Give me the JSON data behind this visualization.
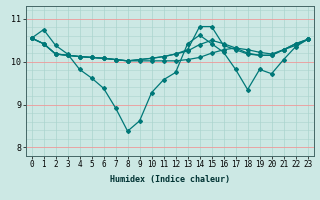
{
  "xlabel": "Humidex (Indice chaleur)",
  "bg_color": "#cce8e4",
  "line_color": "#007878",
  "grid_red": "#ee9999",
  "grid_teal": "#aad4ce",
  "xlim": [
    -0.5,
    23.5
  ],
  "ylim": [
    7.8,
    11.3
  ],
  "yticks": [
    8,
    9,
    10,
    11
  ],
  "xticks": [
    0,
    1,
    2,
    3,
    4,
    5,
    6,
    7,
    8,
    9,
    10,
    11,
    12,
    13,
    14,
    15,
    16,
    17,
    18,
    19,
    20,
    21,
    22,
    23
  ],
  "series": [
    [
      10.55,
      10.75,
      10.38,
      10.18,
      9.82,
      9.62,
      9.38,
      8.92,
      8.38,
      8.62,
      9.28,
      9.58,
      9.75,
      10.42,
      10.62,
      10.42,
      10.22,
      9.82,
      9.35,
      9.82,
      9.72,
      10.05,
      10.35,
      10.52
    ],
    [
      10.55,
      10.42,
      10.18,
      10.15,
      10.12,
      10.1,
      10.08,
      10.05,
      10.02,
      10.02,
      10.02,
      10.02,
      10.02,
      10.05,
      10.1,
      10.2,
      10.28,
      10.32,
      10.28,
      10.22,
      10.18,
      10.28,
      10.38,
      10.52
    ],
    [
      10.55,
      10.42,
      10.18,
      10.15,
      10.12,
      10.1,
      10.08,
      10.05,
      10.02,
      10.05,
      10.08,
      10.12,
      10.18,
      10.25,
      10.4,
      10.5,
      10.42,
      10.32,
      10.2,
      10.15,
      10.15,
      10.28,
      10.42,
      10.52
    ],
    [
      10.55,
      10.42,
      10.18,
      10.15,
      10.12,
      10.1,
      10.08,
      10.05,
      10.02,
      10.05,
      10.08,
      10.12,
      10.18,
      10.28,
      10.82,
      10.82,
      10.38,
      10.28,
      10.18,
      10.15,
      10.15,
      10.28,
      10.42,
      10.52
    ]
  ],
  "marker": "D",
  "markersize": 2,
  "linewidth": 0.9,
  "xlabel_fontsize": 6,
  "tick_fontsize": 5.5
}
